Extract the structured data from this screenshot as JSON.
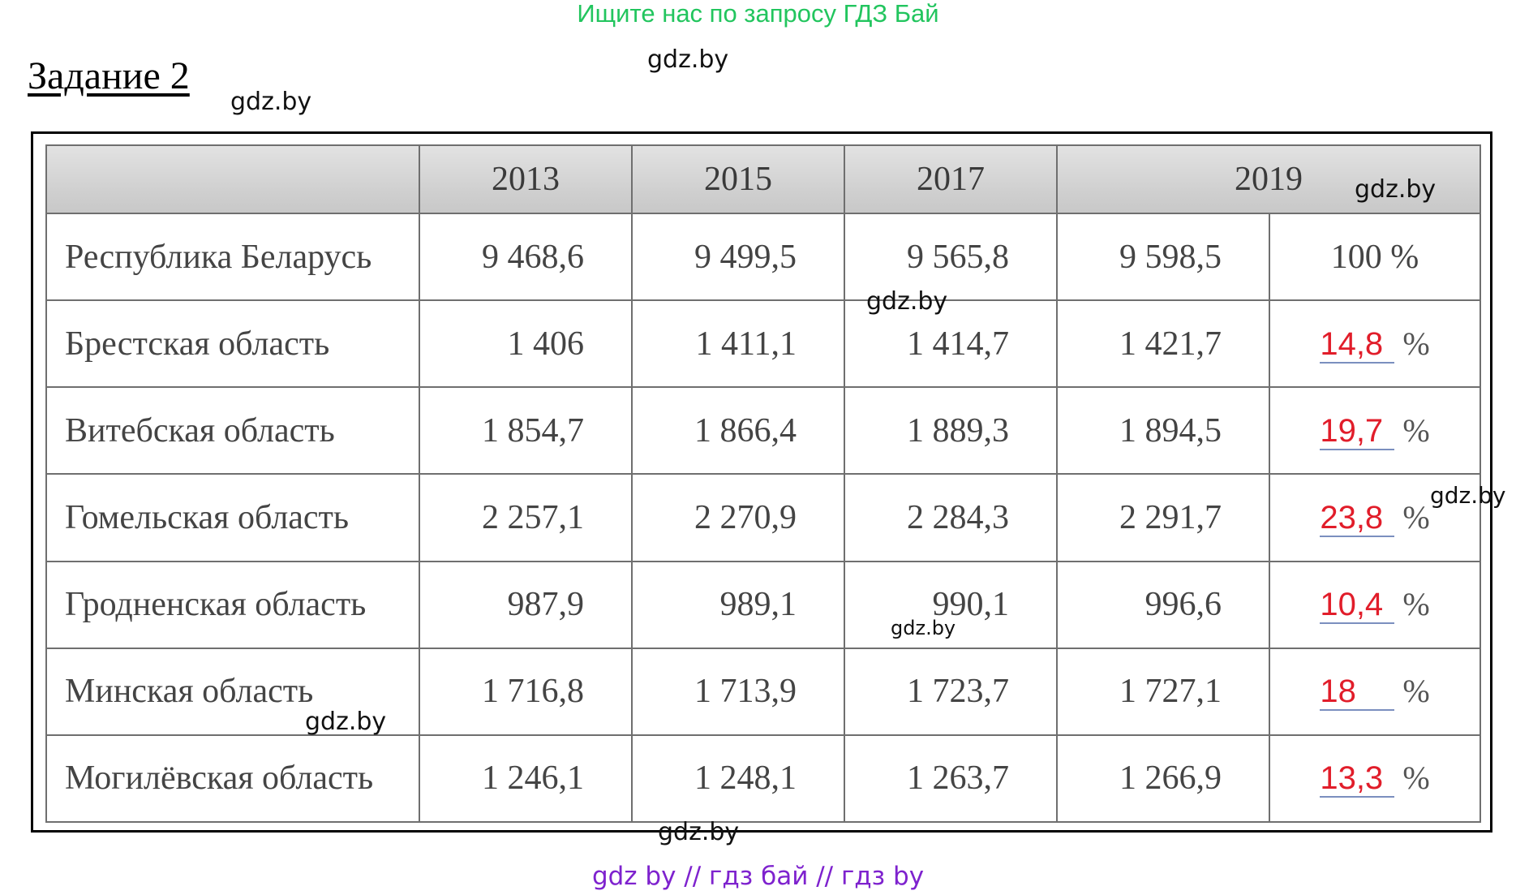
{
  "banner": "Ищите нас по запросу ГДЗ Бай",
  "task_title": "Задание 2",
  "watermark": "gdz.by",
  "footer": "gdz by  //  гдз бай  //  гдз by",
  "table": {
    "years": [
      "2013",
      "2015",
      "2017",
      "2019"
    ],
    "rows": [
      {
        "region": "Республика Беларусь",
        "v2013": "9 468,6",
        "v2015": "9 499,5",
        "v2017": "9 565,8",
        "v2019": "9 598,5",
        "pct": "100 %"
      },
      {
        "region": "Брестская область",
        "v2013": "1 406",
        "v2015": "1 411,1",
        "v2017": "1 414,7",
        "v2019": "1 421,7",
        "pct": "14,8"
      },
      {
        "region": "Витебская область",
        "v2013": "1 854,7",
        "v2015": "1 866,4",
        "v2017": "1 889,3",
        "v2019": "1 894,5",
        "pct": "19,7"
      },
      {
        "region": "Гомельская область",
        "v2013": "2 257,1",
        "v2015": "2 270,9",
        "v2017": "2 284,3",
        "v2019": "2 291,7",
        "pct": "23,8"
      },
      {
        "region": "Гродненская область",
        "v2013": "987,9",
        "v2015": "989,1",
        "v2017": "990,1",
        "v2019": "996,6",
        "pct": "10,4"
      },
      {
        "region": "Минская область",
        "v2013": "1 716,8",
        "v2015": "1 713,9",
        "v2017": "1 723,7",
        "v2019": "1 727,1",
        "pct": "18"
      },
      {
        "region": "Могилёвская область",
        "v2013": "1 246,1",
        "v2015": "1 248,1",
        "v2017": "1 263,7",
        "v2019": "1 266,9",
        "pct": "13,3"
      }
    ],
    "pct_sign": "%"
  }
}
